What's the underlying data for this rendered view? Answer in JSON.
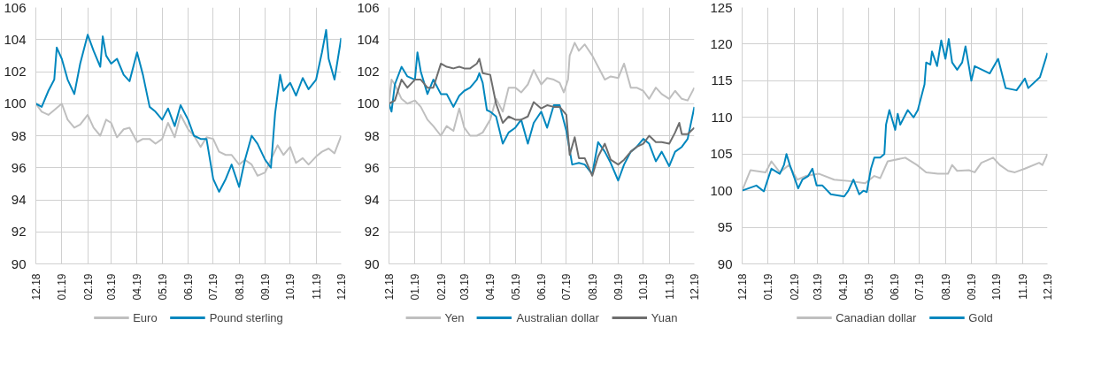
{
  "chart_data": [
    {
      "type": "line",
      "xlim": [
        "2018-12-01",
        "2019-12-01"
      ],
      "ylim": [
        90,
        106
      ],
      "yticks": [
        90,
        92,
        94,
        96,
        98,
        100,
        102,
        104,
        106
      ],
      "xticks": [
        {
          "value": "2018-12",
          "label": "12.18"
        },
        {
          "value": "2019-01",
          "label": "01.19"
        },
        {
          "value": "2019-02",
          "label": "02.19"
        },
        {
          "value": "2019-03",
          "label": "03.19"
        },
        {
          "value": "2019-04",
          "label": "04.19"
        },
        {
          "value": "2019-05",
          "label": "05.19"
        },
        {
          "value": "2019-06",
          "label": "06.19"
        },
        {
          "value": "2019-07",
          "label": "07.19"
        },
        {
          "value": "2019-08",
          "label": "08.19"
        },
        {
          "value": "2019-09",
          "label": "09.19"
        },
        {
          "value": "2019-10",
          "label": "10.19"
        },
        {
          "value": "2019-11",
          "label": "11.19"
        },
        {
          "value": "2019-12",
          "label": "12.19"
        }
      ],
      "grid": true,
      "legend": "bottom",
      "series": [
        {
          "name": "Euro",
          "color": "#bfbfbf",
          "x": [
            "2018-12-01",
            "2018-12-08",
            "2018-12-16",
            "2018-12-23",
            "2019-01-01",
            "2019-01-08",
            "2019-01-16",
            "2019-01-23",
            "2019-02-01",
            "2019-02-08",
            "2019-02-16",
            "2019-02-23",
            "2019-03-01",
            "2019-03-08",
            "2019-03-16",
            "2019-03-23",
            "2019-04-01",
            "2019-04-08",
            "2019-04-16",
            "2019-04-23",
            "2019-05-01",
            "2019-05-08",
            "2019-05-16",
            "2019-05-23",
            "2019-06-01",
            "2019-06-08",
            "2019-06-16",
            "2019-06-23",
            "2019-07-01",
            "2019-07-08",
            "2019-07-16",
            "2019-07-23",
            "2019-08-01",
            "2019-08-08",
            "2019-08-16",
            "2019-08-23",
            "2019-09-01",
            "2019-09-08",
            "2019-09-16",
            "2019-09-23",
            "2019-10-01",
            "2019-10-08",
            "2019-10-16",
            "2019-10-23",
            "2019-11-01",
            "2019-11-08",
            "2019-11-16",
            "2019-11-23",
            "2019-12-01"
          ],
          "values": [
            100,
            99.5,
            99.3,
            99.6,
            100,
            99,
            98.5,
            98.7,
            99.3,
            98.5,
            98,
            99,
            98.8,
            97.9,
            98.4,
            98.5,
            97.6,
            97.8,
            97.8,
            97.5,
            97.8,
            98.8,
            97.9,
            99.3,
            98.4,
            98,
            97.3,
            97.9,
            97.8,
            97,
            96.8,
            96.8,
            96.2,
            96.5,
            96.2,
            95.5,
            95.7,
            96.5,
            97.4,
            96.8,
            97.3,
            96.3,
            96.6,
            96.2,
            96.7,
            97,
            97.2,
            96.9,
            98
          ]
        },
        {
          "name": "Pound sterling",
          "color": "#0087be",
          "x": [
            "2018-12-01",
            "2018-12-08",
            "2018-12-16",
            "2018-12-23",
            "2018-12-26",
            "2019-01-01",
            "2019-01-08",
            "2019-01-16",
            "2019-01-23",
            "2019-02-01",
            "2019-02-08",
            "2019-02-16",
            "2019-02-19",
            "2019-02-23",
            "2019-03-01",
            "2019-03-08",
            "2019-03-16",
            "2019-03-23",
            "2019-04-01",
            "2019-04-08",
            "2019-04-16",
            "2019-04-23",
            "2019-05-01",
            "2019-05-08",
            "2019-05-16",
            "2019-05-23",
            "2019-06-01",
            "2019-06-08",
            "2019-06-16",
            "2019-06-23",
            "2019-07-01",
            "2019-07-08",
            "2019-07-16",
            "2019-07-23",
            "2019-08-01",
            "2019-08-08",
            "2019-08-16",
            "2019-08-23",
            "2019-09-01",
            "2019-09-08",
            "2019-09-13",
            "2019-09-19",
            "2019-09-23",
            "2019-10-01",
            "2019-10-08",
            "2019-10-16",
            "2019-10-23",
            "2019-11-01",
            "2019-11-08",
            "2019-11-13",
            "2019-11-16",
            "2019-11-23",
            "2019-12-01"
          ],
          "values": [
            100,
            99.8,
            100.8,
            101.5,
            103.5,
            102.8,
            101.5,
            100.6,
            102.5,
            104.3,
            103.3,
            102.3,
            104.2,
            103,
            102.5,
            102.8,
            101.8,
            101.4,
            103.2,
            101.8,
            99.8,
            99.5,
            99,
            99.7,
            98.6,
            99.9,
            99,
            98,
            97.8,
            97.8,
            95.3,
            94.5,
            95.3,
            96.2,
            94.8,
            96.5,
            98,
            97.5,
            96.5,
            96,
            99.4,
            101.8,
            100.8,
            101.3,
            100.5,
            101.6,
            100.9,
            101.5,
            103.2,
            104.6,
            102.8,
            101.5,
            104.1
          ]
        }
      ]
    },
    {
      "type": "line",
      "xlim": [
        "2018-12-01",
        "2019-12-01"
      ],
      "ylim": [
        90,
        106
      ],
      "yticks": [
        90,
        92,
        94,
        96,
        98,
        100,
        102,
        104,
        106
      ],
      "xticks": [
        {
          "value": "2018-12",
          "label": "12.18"
        },
        {
          "value": "2019-01",
          "label": "01.19"
        },
        {
          "value": "2019-02",
          "label": "02.19"
        },
        {
          "value": "2019-03",
          "label": "03.19"
        },
        {
          "value": "2019-04",
          "label": "04.19"
        },
        {
          "value": "2019-05",
          "label": "05.19"
        },
        {
          "value": "2019-06",
          "label": "06.19"
        },
        {
          "value": "2019-07",
          "label": "07.19"
        },
        {
          "value": "2019-08",
          "label": "08.19"
        },
        {
          "value": "2019-09",
          "label": "09.19"
        },
        {
          "value": "2019-10",
          "label": "10.19"
        },
        {
          "value": "2019-11",
          "label": "11.19"
        },
        {
          "value": "2019-12",
          "label": "12.19"
        }
      ],
      "grid": true,
      "legend": "bottom",
      "series": [
        {
          "name": "Yen",
          "color": "#bfbfbf",
          "x": [
            "2018-12-01",
            "2018-12-04",
            "2018-12-08",
            "2018-12-16",
            "2018-12-23",
            "2019-01-01",
            "2019-01-08",
            "2019-01-16",
            "2019-01-23",
            "2019-02-01",
            "2019-02-08",
            "2019-02-16",
            "2019-02-23",
            "2019-03-01",
            "2019-03-08",
            "2019-03-16",
            "2019-03-23",
            "2019-04-01",
            "2019-04-08",
            "2019-04-16",
            "2019-04-23",
            "2019-05-01",
            "2019-05-08",
            "2019-05-16",
            "2019-05-23",
            "2019-06-01",
            "2019-06-08",
            "2019-06-16",
            "2019-06-23",
            "2019-06-28",
            "2019-07-03",
            "2019-07-05",
            "2019-07-11",
            "2019-07-16",
            "2019-07-23",
            "2019-08-01",
            "2019-08-08",
            "2019-08-16",
            "2019-08-23",
            "2019-09-01",
            "2019-09-08",
            "2019-09-16",
            "2019-09-23",
            "2019-10-01",
            "2019-10-08",
            "2019-10-16",
            "2019-10-23",
            "2019-11-01",
            "2019-11-08",
            "2019-11-16",
            "2019-11-23",
            "2019-12-01"
          ],
          "values": [
            100,
            101.5,
            101.2,
            100.3,
            100,
            100.2,
            99.8,
            99,
            98.6,
            98,
            98.6,
            98.3,
            99.7,
            98.5,
            98,
            98,
            98.2,
            99,
            100.3,
            99.5,
            101,
            101,
            100.7,
            101.2,
            102.1,
            101.2,
            101.6,
            101.5,
            101.3,
            100.7,
            101.5,
            103,
            103.8,
            103.3,
            103.7,
            103,
            102.3,
            101.5,
            101.7,
            101.6,
            102.5,
            101,
            101,
            100.8,
            100.3,
            101,
            100.6,
            100.3,
            100.8,
            100.3,
            100.2,
            101
          ]
        },
        {
          "name": "Australian dollar",
          "color": "#0087be",
          "x": [
            "2018-12-01",
            "2018-12-04",
            "2018-12-08",
            "2018-12-16",
            "2018-12-23",
            "2019-01-01",
            "2019-01-04",
            "2019-01-08",
            "2019-01-16",
            "2019-01-23",
            "2019-02-01",
            "2019-02-08",
            "2019-02-16",
            "2019-02-23",
            "2019-03-01",
            "2019-03-08",
            "2019-03-16",
            "2019-03-19",
            "2019-03-23",
            "2019-03-28",
            "2019-04-01",
            "2019-04-08",
            "2019-04-16",
            "2019-04-23",
            "2019-05-01",
            "2019-05-08",
            "2019-05-16",
            "2019-05-23",
            "2019-06-01",
            "2019-06-08",
            "2019-06-16",
            "2019-06-23",
            "2019-07-01",
            "2019-07-08",
            "2019-07-16",
            "2019-07-23",
            "2019-08-01",
            "2019-08-08",
            "2019-08-16",
            "2019-08-23",
            "2019-09-01",
            "2019-09-08",
            "2019-09-16",
            "2019-09-23",
            "2019-10-01",
            "2019-10-08",
            "2019-10-16",
            "2019-10-23",
            "2019-11-01",
            "2019-11-08",
            "2019-11-16",
            "2019-11-23",
            "2019-12-01"
          ],
          "values": [
            100,
            99.5,
            101.2,
            102.3,
            101.7,
            101.5,
            103.2,
            102,
            100.6,
            101.5,
            100.6,
            100.6,
            99.8,
            100.5,
            100.8,
            101,
            101.5,
            101.9,
            101.3,
            99.6,
            99.5,
            99.2,
            97.5,
            98.2,
            98.5,
            99,
            97.5,
            98.8,
            99.5,
            98.5,
            99.9,
            99.9,
            98.3,
            96.2,
            96.3,
            96.2,
            95.6,
            97.6,
            97,
            96.3,
            95.2,
            96.2,
            97,
            97.3,
            97.8,
            97.5,
            96.4,
            97,
            96.1,
            97,
            97.3,
            97.8,
            99.8
          ]
        },
        {
          "name": "Yuan",
          "color": "#6e6e6e",
          "x": [
            "2018-12-01",
            "2018-12-08",
            "2018-12-16",
            "2018-12-23",
            "2019-01-01",
            "2019-01-08",
            "2019-01-16",
            "2019-01-23",
            "2019-02-01",
            "2019-02-08",
            "2019-02-16",
            "2019-02-23",
            "2019-03-01",
            "2019-03-08",
            "2019-03-16",
            "2019-03-19",
            "2019-03-23",
            "2019-04-01",
            "2019-04-08",
            "2019-04-16",
            "2019-04-23",
            "2019-05-01",
            "2019-05-08",
            "2019-05-16",
            "2019-05-23",
            "2019-06-01",
            "2019-06-08",
            "2019-06-16",
            "2019-06-23",
            "2019-07-01",
            "2019-07-05",
            "2019-07-11",
            "2019-07-16",
            "2019-07-23",
            "2019-08-01",
            "2019-08-08",
            "2019-08-16",
            "2019-08-23",
            "2019-09-01",
            "2019-09-08",
            "2019-09-16",
            "2019-09-23",
            "2019-10-01",
            "2019-10-08",
            "2019-10-16",
            "2019-10-23",
            "2019-11-01",
            "2019-11-08",
            "2019-11-13",
            "2019-11-16",
            "2019-11-23",
            "2019-12-01"
          ],
          "values": [
            100,
            100.2,
            101.5,
            101,
            101.5,
            101.5,
            101,
            101,
            102.5,
            102.3,
            102.2,
            102.3,
            102.2,
            102.2,
            102.5,
            102.8,
            101.9,
            101.8,
            100,
            98.8,
            99.2,
            99,
            99,
            99.2,
            100.1,
            99.7,
            99.9,
            99.8,
            99.8,
            99.3,
            96.8,
            97.9,
            96.6,
            96.6,
            95.5,
            96.7,
            97.5,
            96.5,
            96.2,
            96.5,
            97,
            97.3,
            97.5,
            98,
            97.6,
            97.6,
            97.5,
            98.2,
            98.8,
            98.1,
            98.1,
            98.5
          ]
        }
      ]
    },
    {
      "type": "line",
      "xlim": [
        "2018-12-01",
        "2019-12-01"
      ],
      "ylim": [
        90,
        125
      ],
      "yticks": [
        90,
        95,
        100,
        105,
        110,
        115,
        120,
        125
      ],
      "xticks": [
        {
          "value": "2018-12",
          "label": "12.18"
        },
        {
          "value": "2019-01",
          "label": "01.19"
        },
        {
          "value": "2019-02",
          "label": "02.19"
        },
        {
          "value": "2019-03",
          "label": "03.19"
        },
        {
          "value": "2019-04",
          "label": "04.19"
        },
        {
          "value": "2019-05",
          "label": "05.19"
        },
        {
          "value": "2019-06",
          "label": "06.19"
        },
        {
          "value": "2019-07",
          "label": "07.19"
        },
        {
          "value": "2019-08",
          "label": "08.19"
        },
        {
          "value": "2019-09",
          "label": "09.19"
        },
        {
          "value": "2019-10",
          "label": "10.19"
        },
        {
          "value": "2019-11",
          "label": "11.19"
        },
        {
          "value": "2019-12",
          "label": "12.19"
        }
      ],
      "grid": true,
      "legend": "bottom",
      "series": [
        {
          "name": "Canadian dollar",
          "color": "#bfbfbf",
          "x": [
            "2018-12-01",
            "2018-12-11",
            "2018-12-29",
            "2019-01-05",
            "2019-01-15",
            "2019-01-26",
            "2019-02-05",
            "2019-02-15",
            "2019-03-03",
            "2019-03-21",
            "2019-04-09",
            "2019-04-27",
            "2019-05-08",
            "2019-05-15",
            "2019-05-24",
            "2019-06-14",
            "2019-06-28",
            "2019-07-09",
            "2019-07-23",
            "2019-08-04",
            "2019-08-09",
            "2019-08-15",
            "2019-08-29",
            "2019-09-05",
            "2019-09-13",
            "2019-09-27",
            "2019-10-05",
            "2019-10-15",
            "2019-10-23",
            "2019-11-04",
            "2019-11-21",
            "2019-11-25",
            "2019-12-01"
          ],
          "values": [
            100,
            102.8,
            102.5,
            104,
            102.5,
            103.5,
            101.5,
            102,
            102.3,
            101.5,
            101.3,
            101,
            102,
            101.7,
            104,
            104.5,
            103.5,
            102.5,
            102.3,
            102.3,
            103.5,
            102.7,
            102.8,
            102.5,
            103.8,
            104.5,
            103.5,
            102.7,
            102.5,
            103,
            103.8,
            103.5,
            105
          ]
        },
        {
          "name": "Gold",
          "color": "#0087be",
          "x": [
            "2018-12-01",
            "2018-12-18",
            "2018-12-27",
            "2019-01-02",
            "2019-01-05",
            "2019-01-15",
            "2019-01-20",
            "2019-01-23",
            "2019-01-27",
            "2019-02-06",
            "2019-02-11",
            "2019-02-18",
            "2019-02-23",
            "2019-02-28",
            "2019-03-07",
            "2019-03-17",
            "2019-04-02",
            "2019-04-07",
            "2019-04-13",
            "2019-04-20",
            "2019-04-25",
            "2019-04-29",
            "2019-05-04",
            "2019-05-08",
            "2019-05-15",
            "2019-05-20",
            "2019-05-22",
            "2019-05-26",
            "2019-06-02",
            "2019-06-05",
            "2019-06-08",
            "2019-06-17",
            "2019-06-24",
            "2019-06-29",
            "2019-07-07",
            "2019-07-09",
            "2019-07-14",
            "2019-07-16",
            "2019-07-22",
            "2019-07-27",
            "2019-08-01",
            "2019-08-05",
            "2019-08-09",
            "2019-08-15",
            "2019-08-21",
            "2019-08-25",
            "2019-09-01",
            "2019-09-05",
            "2019-09-23",
            "2019-10-03",
            "2019-10-12",
            "2019-10-25",
            "2019-11-04",
            "2019-11-08",
            "2019-11-22",
            "2019-12-01"
          ],
          "values": [
            100,
            100.7,
            99.9,
            102,
            103,
            102.3,
            103.5,
            105,
            103.5,
            100.3,
            101.5,
            102,
            103,
            100.7,
            100.7,
            99.5,
            99.2,
            100,
            101.5,
            99.5,
            100,
            99.8,
            103,
            104.5,
            104.5,
            105,
            109,
            111,
            108.3,
            110.5,
            109,
            111,
            110,
            111,
            114.5,
            117.5,
            117.2,
            119,
            117,
            120.5,
            118,
            120.7,
            117.5,
            116.5,
            117.5,
            119.7,
            115,
            117,
            116,
            118,
            114,
            113.7,
            115.3,
            114,
            115.5,
            118.8
          ]
        }
      ]
    }
  ]
}
